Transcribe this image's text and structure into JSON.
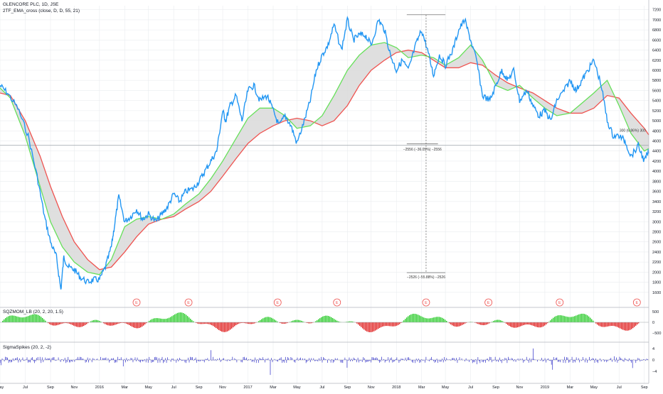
{
  "header": {
    "symbol_line": "GLENCORE PLC, 1D, JSE",
    "indicator_line": "2TF_EMA_cross (close, D, D, 55, 21)"
  },
  "colors": {
    "price_line": "#2196f3",
    "ema_slow": "#ef5350",
    "ema_fast": "#66e05a",
    "cloud": "#d9d9d9",
    "hist_pos": "#2ecc2e",
    "hist_neg": "#e02020",
    "spikes": "#2c2cc8",
    "grid": "#e9ecef",
    "axis_text": "#131722",
    "earnings": "#ef5350"
  },
  "indicators": {
    "squeeze_title": "SQZMOM_LB (20, 2, 20, 1.5)",
    "spikes_title": "SigmaSpikes (20, 2, -2)",
    "earnings_label": "E",
    "earnings_months": [
      2016.25,
      2016.6,
      2017.2,
      2017.6,
      2018.2,
      2018.62,
      2019.1,
      2019.62
    ]
  },
  "annotations": {
    "measure_1": "−2556 (−36.05%) −2556",
    "measure_2": "−2526 (−55.88%) −2526",
    "measure_3": "300 (6.86%) 300"
  },
  "chart_data": {
    "type": "line",
    "title": "GLENCORE PLC, 1D, JSE",
    "x_ticks": [
      "May",
      "Jul",
      "Sep",
      "Nov",
      "2016",
      "Mar",
      "May",
      "Jul",
      "Sep",
      "Nov",
      "2017",
      "Mar",
      "May",
      "Jul",
      "Sep",
      "Nov",
      "2018",
      "Mar",
      "May",
      "Jul",
      "Sep",
      "Nov",
      "2019",
      "Mar",
      "May",
      "Jul",
      "Sep"
    ],
    "x_tick_positions": [
      2015.33,
      2015.5,
      2015.67,
      2015.83,
      2016.0,
      2016.17,
      2016.33,
      2016.5,
      2016.67,
      2016.83,
      2017.0,
      2017.17,
      2017.33,
      2017.5,
      2017.67,
      2017.83,
      2018.0,
      2018.17,
      2018.33,
      2018.5,
      2018.67,
      2018.83,
      2019.0,
      2019.17,
      2019.33,
      2019.5,
      2019.67
    ],
    "xlim": [
      2015.33,
      2019.7
    ],
    "ylim": [
      1400,
      7280
    ],
    "y_ticks": [
      1600,
      1800,
      2000,
      2200,
      2400,
      2600,
      2800,
      3000,
      3200,
      3400,
      3600,
      3800,
      4000,
      4200,
      4400,
      4600,
      4800,
      5000,
      5200,
      5400,
      5600,
      5800,
      6000,
      6200,
      6400,
      6600,
      6800,
      7000,
      7200
    ],
    "horizontal_level": 4512,
    "series": [
      {
        "name": "Close",
        "x": [
          2015.33,
          2015.38,
          2015.45,
          2015.52,
          2015.58,
          2015.63,
          2015.67,
          2015.71,
          2015.74,
          2015.76,
          2015.79,
          2015.83,
          2015.87,
          2015.92,
          2015.96,
          2016.0,
          2016.04,
          2016.08,
          2016.1,
          2016.13,
          2016.17,
          2016.21,
          2016.25,
          2016.29,
          2016.33,
          2016.38,
          2016.42,
          2016.46,
          2016.5,
          2016.54,
          2016.58,
          2016.63,
          2016.67,
          2016.71,
          2016.75,
          2016.79,
          2016.83,
          2016.85,
          2016.88,
          2016.92,
          2016.96,
          2017.0,
          2017.04,
          2017.08,
          2017.13,
          2017.17,
          2017.21,
          2017.25,
          2017.29,
          2017.33,
          2017.38,
          2017.42,
          2017.46,
          2017.5,
          2017.54,
          2017.58,
          2017.63,
          2017.67,
          2017.71,
          2017.75,
          2017.79,
          2017.83,
          2017.88,
          2017.92,
          2017.96,
          2018.0,
          2018.04,
          2018.08,
          2018.13,
          2018.17,
          2018.21,
          2018.25,
          2018.29,
          2018.33,
          2018.38,
          2018.42,
          2018.46,
          2018.5,
          2018.54,
          2018.58,
          2018.63,
          2018.67,
          2018.71,
          2018.75,
          2018.79,
          2018.83,
          2018.88,
          2018.92,
          2018.96,
          2019.0,
          2019.04,
          2019.08,
          2019.13,
          2019.17,
          2019.21,
          2019.25,
          2019.29,
          2019.33,
          2019.38,
          2019.42,
          2019.46,
          2019.5,
          2019.54,
          2019.58,
          2019.63,
          2019.67,
          2019.7
        ],
        "y": [
          5700,
          5550,
          5250,
          4700,
          3900,
          3100,
          2600,
          2300,
          1650,
          2300,
          2100,
          2050,
          1900,
          1800,
          1850,
          1850,
          2100,
          2500,
          2900,
          3500,
          3000,
          3100,
          3250,
          3050,
          3150,
          3000,
          3150,
          3300,
          3550,
          3400,
          3600,
          3650,
          3800,
          4000,
          4200,
          4400,
          5200,
          5000,
          5300,
          5500,
          5000,
          5600,
          5700,
          5400,
          5500,
          5200,
          4900,
          5100,
          4900,
          4550,
          5000,
          5400,
          6000,
          6300,
          6500,
          6900,
          6400,
          7000,
          6600,
          6700,
          6700,
          6500,
          7000,
          6800,
          6300,
          6000,
          6200,
          6000,
          6500,
          6800,
          6400,
          5900,
          6300,
          6100,
          6400,
          6800,
          7000,
          6600,
          6200,
          5500,
          5400,
          5700,
          6000,
          5800,
          6000,
          5400,
          5600,
          5300,
          5100,
          5200,
          5000,
          5400,
          5600,
          5800,
          5600,
          5800,
          6000,
          6200,
          5700,
          5000,
          4700,
          4700,
          4600,
          4300,
          4500,
          4200,
          4400
        ]
      },
      {
        "name": "EMA 55",
        "x": [
          2015.33,
          2015.4,
          2015.5,
          2015.6,
          2015.67,
          2015.75,
          2015.83,
          2015.92,
          2016.0,
          2016.08,
          2016.17,
          2016.25,
          2016.33,
          2016.42,
          2016.5,
          2016.58,
          2016.67,
          2016.75,
          2016.83,
          2016.92,
          2017.0,
          2017.08,
          2017.17,
          2017.25,
          2017.33,
          2017.42,
          2017.5,
          2017.58,
          2017.67,
          2017.75,
          2017.83,
          2017.92,
          2018.0,
          2018.08,
          2018.17,
          2018.25,
          2018.33,
          2018.42,
          2018.5,
          2018.58,
          2018.67,
          2018.75,
          2018.83,
          2018.92,
          2019.0,
          2019.08,
          2019.17,
          2019.25,
          2019.33,
          2019.42,
          2019.5,
          2019.58,
          2019.67,
          2019.7
        ],
        "y": [
          5550,
          5500,
          5000,
          4300,
          3700,
          3100,
          2600,
          2250,
          2050,
          2100,
          2400,
          2700,
          2950,
          3050,
          3100,
          3250,
          3400,
          3600,
          3900,
          4250,
          4550,
          4750,
          4900,
          5000,
          5050,
          5000,
          4900,
          5000,
          5300,
          5700,
          6000,
          6200,
          6350,
          6400,
          6350,
          6200,
          6050,
          6050,
          6150,
          6100,
          5900,
          5750,
          5650,
          5550,
          5400,
          5250,
          5150,
          5150,
          5250,
          5500,
          5450,
          5150,
          4850,
          4720
        ]
      },
      {
        "name": "EMA 21",
        "x": [
          2015.33,
          2015.4,
          2015.5,
          2015.6,
          2015.67,
          2015.75,
          2015.83,
          2015.92,
          2016.0,
          2016.08,
          2016.17,
          2016.25,
          2016.33,
          2016.42,
          2016.5,
          2016.58,
          2016.67,
          2016.75,
          2016.83,
          2016.92,
          2017.0,
          2017.08,
          2017.17,
          2017.25,
          2017.33,
          2017.42,
          2017.5,
          2017.58,
          2017.67,
          2017.75,
          2017.83,
          2017.92,
          2018.0,
          2018.08,
          2018.17,
          2018.25,
          2018.33,
          2018.42,
          2018.5,
          2018.58,
          2018.67,
          2018.75,
          2018.83,
          2018.92,
          2019.0,
          2019.08,
          2019.17,
          2019.25,
          2019.33,
          2019.42,
          2019.5,
          2019.58,
          2019.67,
          2019.7
        ],
        "y": [
          5650,
          5450,
          4700,
          3700,
          3000,
          2500,
          2200,
          2000,
          1950,
          2250,
          2900,
          3050,
          3100,
          3050,
          3150,
          3350,
          3550,
          3850,
          4200,
          4650,
          5050,
          5250,
          5250,
          5100,
          4850,
          4900,
          5100,
          5500,
          6000,
          6300,
          6500,
          6550,
          6450,
          6250,
          6300,
          6250,
          6100,
          6250,
          6500,
          6200,
          5700,
          5600,
          5700,
          5450,
          5250,
          5100,
          5150,
          5350,
          5550,
          5800,
          5300,
          4750,
          4400,
          4450
        ]
      }
    ]
  }
}
